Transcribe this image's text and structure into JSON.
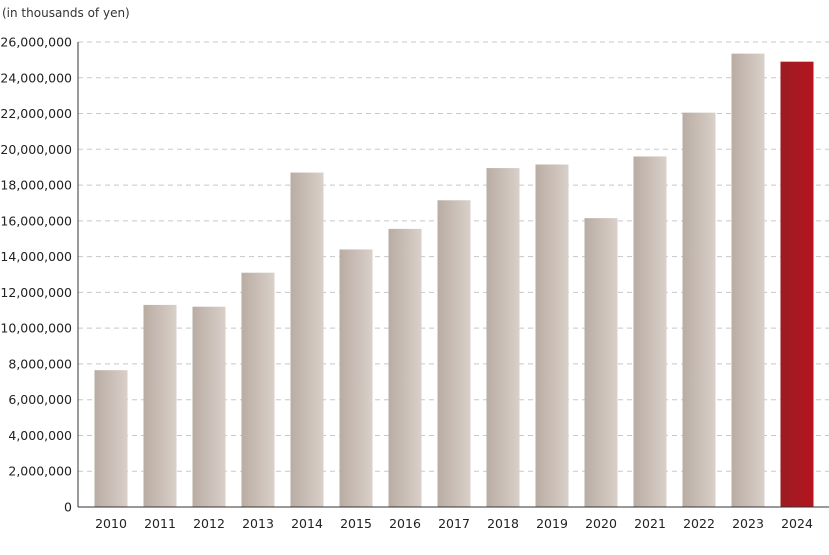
{
  "chart_data": {
    "type": "bar",
    "unit_label": "(in thousands of yen)",
    "categories": [
      "2010",
      "2011",
      "2012",
      "2013",
      "2014",
      "2015",
      "2016",
      "2017",
      "2018",
      "2019",
      "2020",
      "2021",
      "2022",
      "2023",
      "2024"
    ],
    "values": [
      7650000,
      11300000,
      11200000,
      13100000,
      18700000,
      14400000,
      15550000,
      17150000,
      18950000,
      19150000,
      16150000,
      19600000,
      22050000,
      25350000,
      24900000
    ],
    "highlight_category": "2024",
    "ylim": [
      0,
      26000000
    ],
    "yticks": [
      0,
      2000000,
      4000000,
      6000000,
      8000000,
      10000000,
      12000000,
      14000000,
      16000000,
      18000000,
      20000000,
      22000000,
      24000000,
      26000000
    ],
    "ytick_labels": [
      "0",
      "2,000,000",
      "4,000,000",
      "6,000,000",
      "8,000,000",
      "10,000,000",
      "12,000,000",
      "14,000,000",
      "16,000,000",
      "18,000,000",
      "20,000,000",
      "22,000,000",
      "24,000,000",
      "26,000,000"
    ],
    "grid": true,
    "colors": {
      "bar_light": "#d9d0c9",
      "bar_dark": "#b9aca3",
      "highlight_light": "#b5151e",
      "highlight_dark": "#9b1c22",
      "grid": "#c8c8c8",
      "axis": "#333333",
      "text": "#222222"
    }
  }
}
